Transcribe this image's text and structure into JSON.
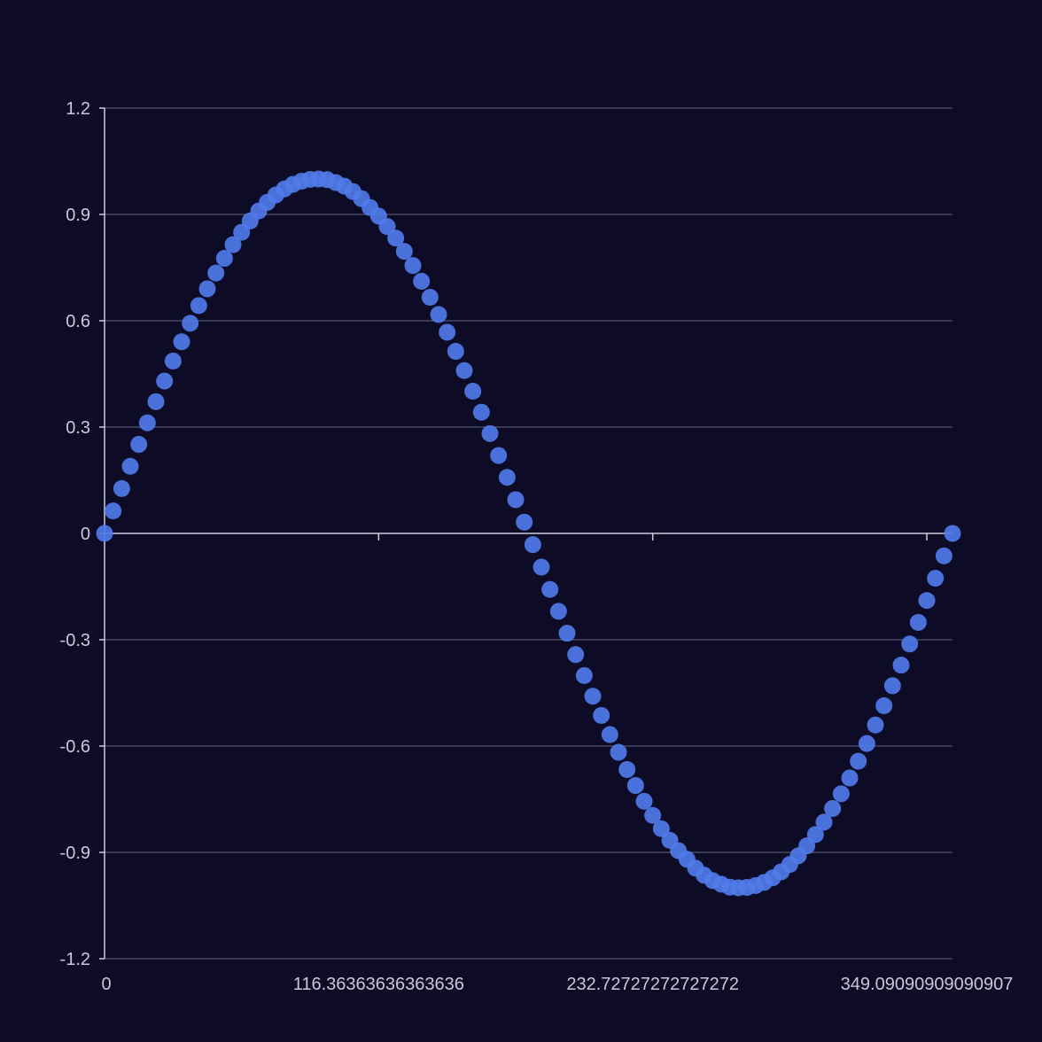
{
  "colors": {
    "background": "#0d0b26",
    "point": "#4f7be8",
    "grid": "#4a4962",
    "axis": "#cfcedd",
    "text": "#c9c8d6"
  },
  "chart_data": {
    "type": "scatter",
    "title": "",
    "xlabel": "",
    "ylabel": "",
    "xlim": [
      0,
      360
    ],
    "ylim": [
      -1.2,
      1.2
    ],
    "grid": "horizontal",
    "legend": "none",
    "x_ticks": [
      "0",
      "116.36363636363636",
      "232.72727272727272",
      "349.09090909090907"
    ],
    "y_ticks": [
      "1.2",
      "0.9",
      "0.6",
      "0.3",
      "0",
      "-0.3",
      "-0.6",
      "-0.9",
      "-1.2"
    ],
    "series": [
      {
        "function": "sin(x°)",
        "x": [
          0,
          3.636,
          7.273,
          10.909,
          14.545,
          18.182,
          21.818,
          25.455,
          29.091,
          32.727,
          36.364,
          40,
          43.636,
          47.273,
          50.909,
          54.545,
          58.182,
          61.818,
          65.455,
          69.091,
          72.727,
          76.364,
          80,
          83.636,
          87.273,
          90.909,
          94.545,
          98.182,
          101.818,
          105.455,
          109.091,
          112.727,
          116.364,
          120,
          123.636,
          127.273,
          130.909,
          134.545,
          138.182,
          141.818,
          145.455,
          149.091,
          152.727,
          156.364,
          160,
          163.636,
          167.273,
          170.909,
          174.545,
          178.182,
          181.818,
          185.455,
          189.091,
          192.727,
          196.364,
          200,
          203.636,
          207.273,
          210.909,
          214.545,
          218.182,
          221.818,
          225.455,
          229.091,
          232.727,
          236.364,
          240,
          243.636,
          247.273,
          250.909,
          254.545,
          258.182,
          261.818,
          265.455,
          269.091,
          272.727,
          276.364,
          280,
          283.636,
          287.273,
          290.909,
          294.545,
          298.182,
          301.818,
          305.455,
          309.091,
          312.727,
          316.364,
          320,
          323.636,
          327.273,
          330.909,
          334.545,
          338.182,
          341.818,
          345.455,
          349.091,
          352.727,
          356.364,
          360
        ],
        "y": [
          0,
          0.0634,
          0.1266,
          0.1893,
          0.2511,
          0.312,
          0.3717,
          0.4298,
          0.4862,
          0.5406,
          0.5929,
          0.6428,
          0.6901,
          0.7346,
          0.7761,
          0.8146,
          0.8497,
          0.8815,
          0.9096,
          0.9341,
          0.9549,
          0.9718,
          0.9848,
          0.9938,
          0.9989,
          0.9999,
          0.998,
          0.9898,
          0.9797,
          0.9645,
          0.9445,
          0.9195,
          0.8952,
          0.866,
          0.8331,
          0.7956,
          0.7558,
          0.7114,
          0.6663,
          0.6176,
          0.5676,
          0.5136,
          0.4594,
          0.4011,
          0.342,
          0.2817,
          0.2198,
          0.1582,
          0.0951,
          0.0317,
          -0.0317,
          -0.0951,
          -0.1582,
          -0.2198,
          -0.2817,
          -0.342,
          -0.4011,
          -0.4594,
          -0.5136,
          -0.5676,
          -0.6176,
          -0.6663,
          -0.7114,
          -0.7558,
          -0.7956,
          -0.8331,
          -0.866,
          -0.8952,
          -0.9195,
          -0.9445,
          -0.9645,
          -0.9797,
          -0.9898,
          -0.998,
          -0.9999,
          -0.9989,
          -0.9938,
          -0.9848,
          -0.9718,
          -0.9549,
          -0.9341,
          -0.9096,
          -0.8815,
          -0.8497,
          -0.8146,
          -0.7761,
          -0.7346,
          -0.6901,
          -0.6428,
          -0.5929,
          -0.5406,
          -0.4862,
          -0.4298,
          -0.3717,
          -0.312,
          -0.2511,
          -0.1893,
          -0.1266,
          -0.0634,
          0
        ]
      }
    ]
  }
}
